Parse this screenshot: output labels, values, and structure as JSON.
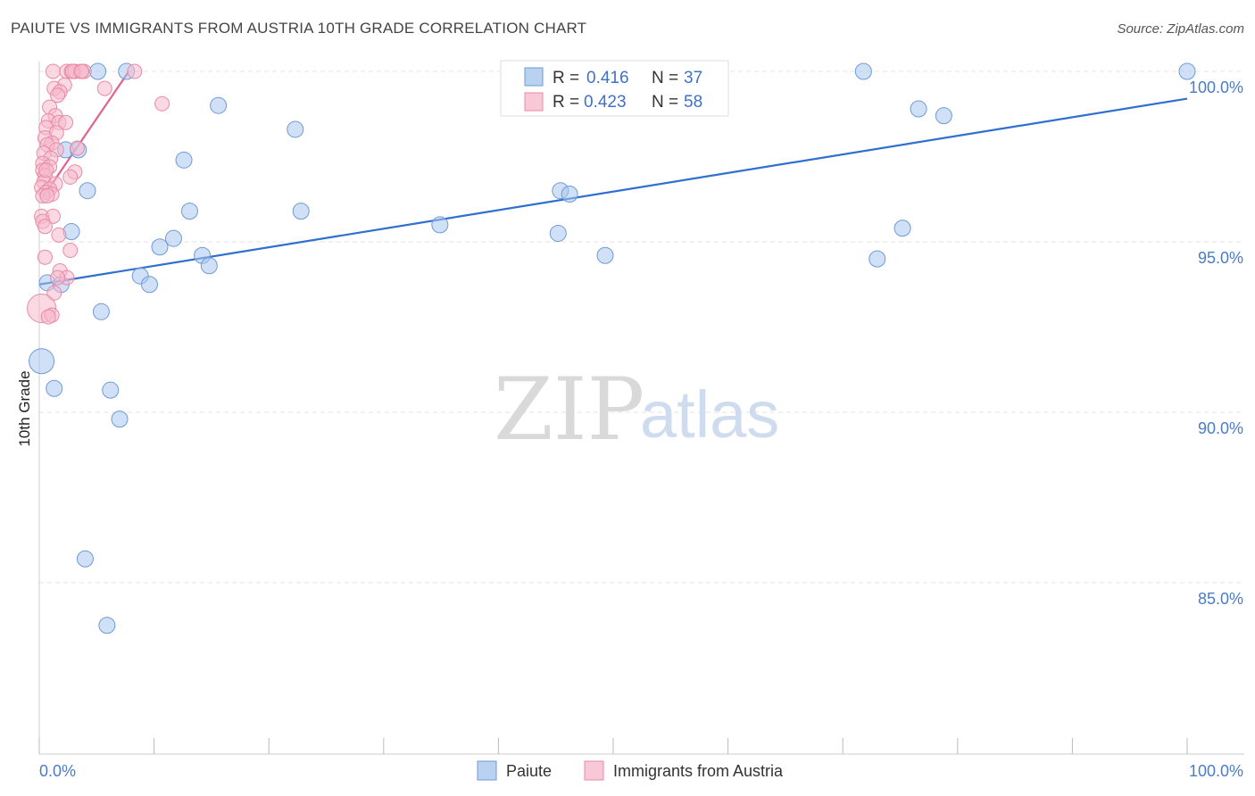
{
  "title": "PAIUTE VS IMMIGRANTS FROM AUSTRIA 10TH GRADE CORRELATION CHART",
  "source": "Source: ZipAtlas.com",
  "watermark": {
    "zip": "ZIP",
    "atlas": "atlas"
  },
  "chart_data": {
    "type": "scatter",
    "title": "PAIUTE VS IMMIGRANTS FROM AUSTRIA 10TH GRADE CORRELATION CHART",
    "xlabel": "",
    "ylabel": "10th Grade",
    "xlim": [
      0,
      100
    ],
    "ylim": [
      80.5,
      100.2
    ],
    "x_tick_labels": [
      {
        "value": 0,
        "label": "0.0%"
      },
      {
        "value": 100,
        "label": "100.0%"
      }
    ],
    "x_minor_ticks": [
      0,
      10,
      20,
      30,
      40,
      50,
      60,
      70,
      80,
      90,
      100
    ],
    "y_ticks": [
      {
        "value": 100,
        "label": "100.0%"
      },
      {
        "value": 95,
        "label": "95.0%"
      },
      {
        "value": 90,
        "label": "90.0%"
      },
      {
        "value": 85,
        "label": "85.0%"
      }
    ],
    "grid": true,
    "legend": {
      "position": "top-center",
      "entries": [
        {
          "series": "Paiute",
          "r_label": "R =",
          "r_value": "0.416",
          "n_label": "N =",
          "n_value": "37"
        },
        {
          "series": "Immigrants from Austria",
          "r_label": "R =",
          "r_value": "0.423",
          "n_label": "N =",
          "n_value": "58"
        }
      ]
    },
    "series": [
      {
        "name": "Paiute",
        "color": "#a9c6ee",
        "edge_color": "#6f9ad6",
        "trend_color": "#2f6fcf",
        "trend": {
          "x": [
            0,
            100
          ],
          "y": [
            93.75,
            99.2
          ]
        },
        "points": [
          {
            "x": 5.1,
            "y": 100,
            "s": 9
          },
          {
            "x": 7.6,
            "y": 100,
            "s": 9
          },
          {
            "x": 71.8,
            "y": 100,
            "s": 9
          },
          {
            "x": 100,
            "y": 100,
            "s": 9
          },
          {
            "x": 15.6,
            "y": 99.0,
            "s": 9
          },
          {
            "x": 76.6,
            "y": 98.9,
            "s": 9
          },
          {
            "x": 78.8,
            "y": 98.7,
            "s": 9
          },
          {
            "x": 22.3,
            "y": 98.3,
            "s": 9
          },
          {
            "x": 2.3,
            "y": 97.7,
            "s": 9
          },
          {
            "x": 3.4,
            "y": 97.7,
            "s": 9
          },
          {
            "x": 12.6,
            "y": 97.4,
            "s": 9
          },
          {
            "x": 4.2,
            "y": 96.5,
            "s": 9
          },
          {
            "x": 45.4,
            "y": 96.5,
            "s": 9
          },
          {
            "x": 46.2,
            "y": 96.4,
            "s": 9
          },
          {
            "x": 13.1,
            "y": 95.9,
            "s": 9
          },
          {
            "x": 22.8,
            "y": 95.9,
            "s": 9
          },
          {
            "x": 34.9,
            "y": 95.5,
            "s": 9
          },
          {
            "x": 2.8,
            "y": 95.3,
            "s": 9
          },
          {
            "x": 45.2,
            "y": 95.25,
            "s": 9
          },
          {
            "x": 75.2,
            "y": 95.4,
            "s": 9
          },
          {
            "x": 11.7,
            "y": 95.1,
            "s": 9
          },
          {
            "x": 10.5,
            "y": 94.85,
            "s": 9
          },
          {
            "x": 14.2,
            "y": 94.6,
            "s": 9
          },
          {
            "x": 49.3,
            "y": 94.6,
            "s": 9
          },
          {
            "x": 73.0,
            "y": 94.5,
            "s": 9
          },
          {
            "x": 14.8,
            "y": 94.3,
            "s": 9
          },
          {
            "x": 8.8,
            "y": 94.0,
            "s": 9
          },
          {
            "x": 9.6,
            "y": 93.75,
            "s": 9
          },
          {
            "x": 0.7,
            "y": 93.8,
            "s": 9
          },
          {
            "x": 1.9,
            "y": 93.75,
            "s": 9
          },
          {
            "x": 5.4,
            "y": 92.95,
            "s": 9
          },
          {
            "x": 0.2,
            "y": 91.5,
            "s": 14
          },
          {
            "x": 1.3,
            "y": 90.7,
            "s": 9
          },
          {
            "x": 6.2,
            "y": 90.65,
            "s": 9
          },
          {
            "x": 7.0,
            "y": 89.8,
            "s": 9
          },
          {
            "x": 4.0,
            "y": 85.7,
            "s": 9
          },
          {
            "x": 5.9,
            "y": 83.75,
            "s": 9
          }
        ]
      },
      {
        "name": "Immigrants from Austria",
        "color": "#f6b9cc",
        "edge_color": "#e88aa8",
        "trend_color": "#e0628f",
        "trend": {
          "x": [
            0.3,
            7.8
          ],
          "y": [
            96.3,
            100
          ]
        },
        "points": [
          {
            "x": 1.2,
            "y": 100,
            "s": 8
          },
          {
            "x": 2.4,
            "y": 100,
            "s": 8
          },
          {
            "x": 2.8,
            "y": 100,
            "s": 8
          },
          {
            "x": 3.1,
            "y": 100,
            "s": 8
          },
          {
            "x": 3.6,
            "y": 100,
            "s": 8
          },
          {
            "x": 3.9,
            "y": 100,
            "s": 8
          },
          {
            "x": 8.3,
            "y": 100,
            "s": 8
          },
          {
            "x": 2.2,
            "y": 99.6,
            "s": 8
          },
          {
            "x": 1.3,
            "y": 99.5,
            "s": 8
          },
          {
            "x": 5.7,
            "y": 99.5,
            "s": 8
          },
          {
            "x": 1.8,
            "y": 99.4,
            "s": 8
          },
          {
            "x": 1.6,
            "y": 99.3,
            "s": 8
          },
          {
            "x": 10.7,
            "y": 99.05,
            "s": 8
          },
          {
            "x": 0.9,
            "y": 98.95,
            "s": 8
          },
          {
            "x": 1.4,
            "y": 98.7,
            "s": 8
          },
          {
            "x": 0.8,
            "y": 98.55,
            "s": 8
          },
          {
            "x": 1.7,
            "y": 98.5,
            "s": 8
          },
          {
            "x": 2.3,
            "y": 98.5,
            "s": 8
          },
          {
            "x": 0.6,
            "y": 98.35,
            "s": 8
          },
          {
            "x": 1.5,
            "y": 98.2,
            "s": 8
          },
          {
            "x": 0.5,
            "y": 98.05,
            "s": 8
          },
          {
            "x": 1.1,
            "y": 97.9,
            "s": 8
          },
          {
            "x": 0.7,
            "y": 97.85,
            "s": 8
          },
          {
            "x": 3.3,
            "y": 97.75,
            "s": 8
          },
          {
            "x": 1.5,
            "y": 97.7,
            "s": 8
          },
          {
            "x": 0.4,
            "y": 97.6,
            "s": 8
          },
          {
            "x": 1.0,
            "y": 97.45,
            "s": 8
          },
          {
            "x": 0.3,
            "y": 97.3,
            "s": 8
          },
          {
            "x": 0.9,
            "y": 97.2,
            "s": 8
          },
          {
            "x": 0.3,
            "y": 97.1,
            "s": 8
          },
          {
            "x": 3.1,
            "y": 97.05,
            "s": 8
          },
          {
            "x": 0.5,
            "y": 96.95,
            "s": 8
          },
          {
            "x": 2.7,
            "y": 96.9,
            "s": 8
          },
          {
            "x": 0.4,
            "y": 96.75,
            "s": 8
          },
          {
            "x": 1.4,
            "y": 96.7,
            "s": 8
          },
          {
            "x": 0.2,
            "y": 96.6,
            "s": 8
          },
          {
            "x": 0.9,
            "y": 96.55,
            "s": 8
          },
          {
            "x": 0.6,
            "y": 96.45,
            "s": 8
          },
          {
            "x": 1.1,
            "y": 96.4,
            "s": 8
          },
          {
            "x": 0.3,
            "y": 96.35,
            "s": 8
          },
          {
            "x": 0.7,
            "y": 96.35,
            "s": 8
          },
          {
            "x": 0.2,
            "y": 95.75,
            "s": 8
          },
          {
            "x": 1.2,
            "y": 95.75,
            "s": 8
          },
          {
            "x": 0.3,
            "y": 95.6,
            "s": 8
          },
          {
            "x": 0.5,
            "y": 95.45,
            "s": 8
          },
          {
            "x": 1.7,
            "y": 95.2,
            "s": 8
          },
          {
            "x": 2.7,
            "y": 94.75,
            "s": 8
          },
          {
            "x": 0.5,
            "y": 94.55,
            "s": 8
          },
          {
            "x": 1.8,
            "y": 94.15,
            "s": 8
          },
          {
            "x": 2.4,
            "y": 93.95,
            "s": 8
          },
          {
            "x": 1.6,
            "y": 93.95,
            "s": 8
          },
          {
            "x": 1.3,
            "y": 93.5,
            "s": 8
          },
          {
            "x": 0.2,
            "y": 93.05,
            "s": 16
          },
          {
            "x": 1.1,
            "y": 92.85,
            "s": 8
          },
          {
            "x": 0.8,
            "y": 92.8,
            "s": 8
          },
          {
            "x": 2.9,
            "y": 100,
            "s": 8
          },
          {
            "x": 3.7,
            "y": 100,
            "s": 8
          },
          {
            "x": 0.6,
            "y": 97.1,
            "s": 8
          }
        ]
      }
    ]
  }
}
